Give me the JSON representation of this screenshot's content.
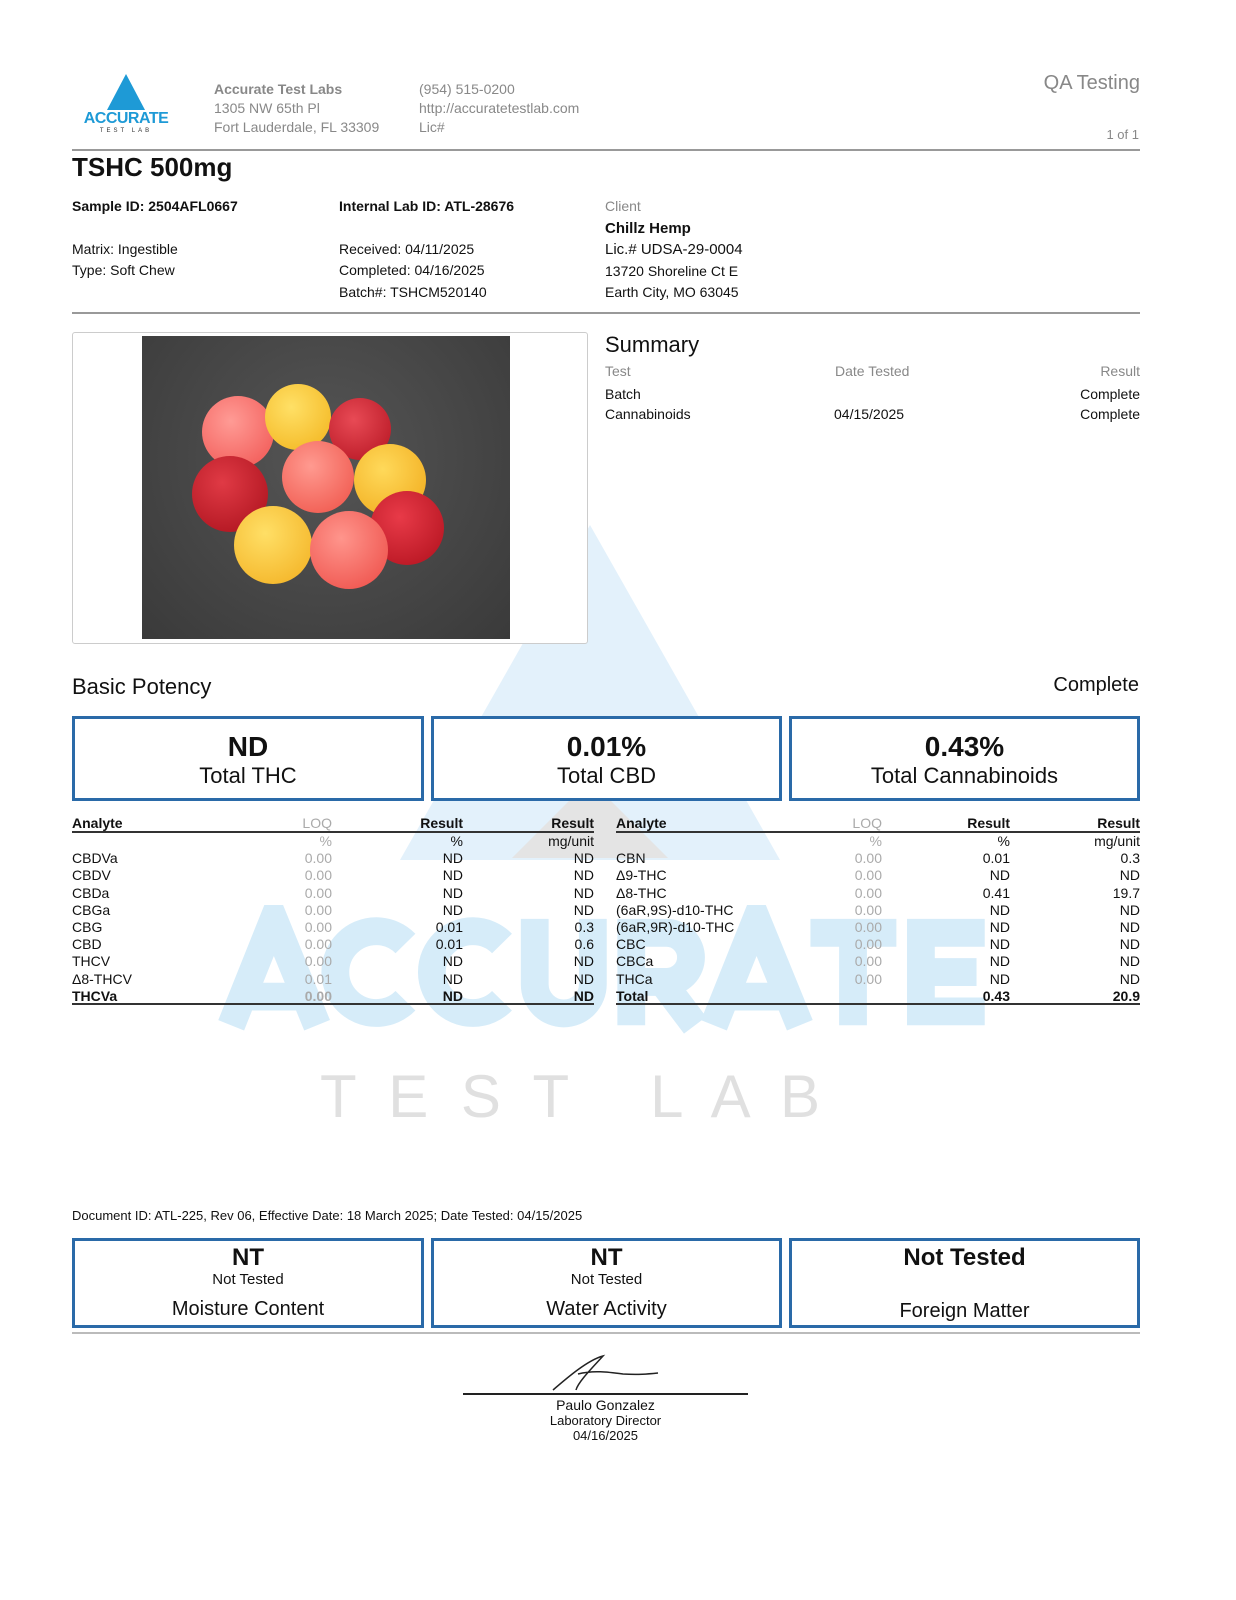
{
  "header": {
    "logo_text": "ACCURATE",
    "logo_sub": "TEST LAB",
    "lab_name": "Accurate Test Labs",
    "address1": "1305 NW 65th Pl",
    "address2": "Fort Lauderdale, FL 33309",
    "phone": "(954) 515-0200",
    "website": "http://accuratetestlab.com",
    "lic": "Lic#",
    "doc_type": "QA Testing",
    "page": "1 of 1"
  },
  "product": {
    "title": "TSHC 500mg",
    "sample_id": "Sample ID: 2504AFL0667",
    "internal_id": "Internal Lab ID: ATL-28676",
    "matrix": "Matrix: Ingestible",
    "type": "Type: Soft Chew",
    "received": "Received: 04/11/2025",
    "completed": "Completed: 04/16/2025",
    "batch": "Batch#: TSHCM520140"
  },
  "client": {
    "label": "Client",
    "name": "Chillz Hemp",
    "lic": "Lic.# UDSA-29-0004",
    "address1": "13720 Shoreline Ct E",
    "address2": "Earth City, MO 63045"
  },
  "summary": {
    "title": "Summary",
    "headers": [
      "Test",
      "Date Tested",
      "Result"
    ],
    "rows": [
      [
        "Batch",
        "",
        "Complete"
      ],
      [
        "Cannabinoids",
        "04/15/2025",
        "Complete"
      ]
    ]
  },
  "potency": {
    "title": "Basic Potency",
    "status": "Complete",
    "cards": [
      {
        "value": "ND",
        "label": "Total THC"
      },
      {
        "value": "0.01%",
        "label": "Total CBD"
      },
      {
        "value": "0.43%",
        "label": "Total Cannabinoids"
      }
    ],
    "headers": [
      "Analyte",
      "LOQ",
      "Result",
      "Result"
    ],
    "units": [
      "",
      "%",
      "%",
      "mg/unit"
    ],
    "left_rows": [
      [
        "CBDVa",
        "0.00",
        "ND",
        "ND"
      ],
      [
        "CBDV",
        "0.00",
        "ND",
        "ND"
      ],
      [
        "CBDa",
        "0.00",
        "ND",
        "ND"
      ],
      [
        "CBGa",
        "0.00",
        "ND",
        "ND"
      ],
      [
        "CBG",
        "0.00",
        "0.01",
        "0.3"
      ],
      [
        "CBD",
        "0.00",
        "0.01",
        "0.6"
      ],
      [
        "THCV",
        "0.00",
        "ND",
        "ND"
      ],
      [
        "Δ8-THCV",
        "0.01",
        "ND",
        "ND"
      ],
      [
        "THCVa",
        "0.00",
        "ND",
        "ND"
      ]
    ],
    "right_rows": [
      [
        "CBN",
        "0.00",
        "0.01",
        "0.3"
      ],
      [
        "Δ9-THC",
        "0.00",
        "ND",
        "ND"
      ],
      [
        "Δ8-THC",
        "0.00",
        "0.41",
        "19.7"
      ],
      [
        "(6aR,9S)-d10-THC",
        "0.00",
        "ND",
        "ND"
      ],
      [
        "(6aR,9R)-d10-THC",
        "0.00",
        "ND",
        "ND"
      ],
      [
        "CBC",
        "0.00",
        "ND",
        "ND"
      ],
      [
        "CBCa",
        "0.00",
        "ND",
        "ND"
      ],
      [
        "THCa",
        "0.00",
        "ND",
        "ND"
      ],
      [
        "Total",
        "",
        "0.43",
        "20.9"
      ]
    ]
  },
  "watermark": {
    "line1": "ACCURATE",
    "line2": "T E S T   L A B"
  },
  "footer": {
    "doc_id": "Document ID: ATL-225, Rev 06, Effective Date: 18 March 2025; Date Tested: 04/15/2025",
    "cards": [
      {
        "value": "NT",
        "sub": "Not Tested",
        "label": "Moisture Content"
      },
      {
        "value": "NT",
        "sub": "Not Tested",
        "label": "Water Activity"
      },
      {
        "value": "Not Tested",
        "sub": "",
        "label": "Foreign Matter"
      }
    ],
    "signer": "Paulo Gonzalez",
    "signer_title": "Laboratory Director",
    "sign_date": "04/16/2025"
  },
  "colors": {
    "accent": "#2a6aa8",
    "logo": "#1e9ad6",
    "watermark": "#d6ecf9"
  }
}
